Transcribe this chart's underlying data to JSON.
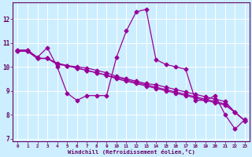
{
  "xlabel": "Windchill (Refroidissement éolien,°C)",
  "bg_color": "#cceeff",
  "grid_color": "#aadddd",
  "line_color": "#990099",
  "hours": [
    0,
    1,
    2,
    3,
    4,
    5,
    6,
    7,
    8,
    9,
    10,
    11,
    12,
    13,
    14,
    15,
    16,
    17,
    18,
    19,
    20,
    21,
    22,
    23
  ],
  "series1": [
    10.7,
    10.7,
    10.4,
    10.8,
    10.0,
    8.9,
    8.6,
    8.8,
    8.8,
    8.8,
    10.4,
    11.5,
    12.3,
    12.4,
    10.3,
    10.1,
    10.0,
    9.9,
    8.6,
    8.6,
    8.8,
    8.0,
    7.4,
    7.8
  ],
  "series2": [
    10.7,
    10.7,
    10.35,
    10.35,
    10.1,
    10.05,
    10.0,
    9.95,
    9.85,
    9.75,
    9.6,
    9.5,
    9.4,
    9.3,
    9.25,
    9.15,
    9.05,
    8.95,
    8.85,
    8.75,
    8.65,
    8.55,
    8.1,
    7.75
  ],
  "series3": [
    10.65,
    10.65,
    10.35,
    10.35,
    10.15,
    10.05,
    9.95,
    9.85,
    9.75,
    9.65,
    9.55,
    9.45,
    9.35,
    9.25,
    9.15,
    9.05,
    8.95,
    8.85,
    8.75,
    8.65,
    8.55,
    8.45,
    8.1,
    7.75
  ],
  "series4": [
    10.65,
    10.65,
    10.35,
    10.35,
    10.15,
    10.05,
    9.95,
    9.85,
    9.75,
    9.65,
    9.5,
    9.4,
    9.3,
    9.2,
    9.1,
    9.0,
    8.9,
    8.8,
    8.7,
    8.6,
    8.5,
    8.4,
    8.1,
    7.75
  ],
  "ylim": [
    6.9,
    12.7
  ],
  "xlim": [
    -0.5,
    23.5
  ],
  "yticks": [
    7,
    8,
    9,
    10,
    11,
    12
  ],
  "xticks": [
    0,
    1,
    2,
    3,
    4,
    5,
    6,
    7,
    8,
    9,
    10,
    11,
    12,
    13,
    14,
    15,
    16,
    17,
    18,
    19,
    20,
    21,
    22,
    23
  ]
}
